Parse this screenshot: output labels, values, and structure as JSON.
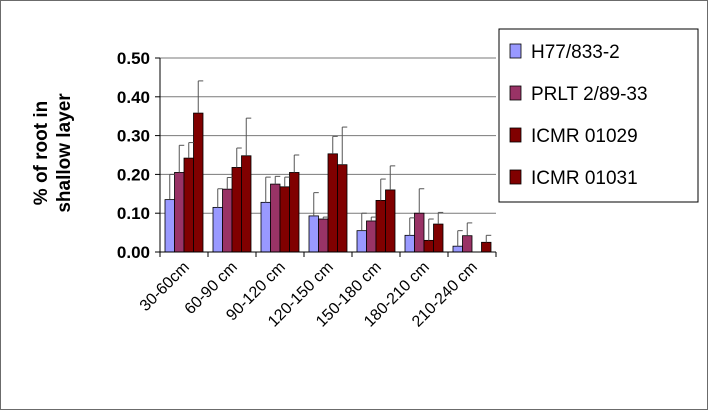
{
  "chart_data": {
    "type": "bar",
    "title": "",
    "xlabel": "",
    "ylabel": "% of root in shallow layer",
    "ylabel_lines": [
      "% of root in",
      "shallow layer"
    ],
    "ylim": [
      0,
      0.5
    ],
    "yticks": [
      "0.00",
      "0.10",
      "0.20",
      "0.30",
      "0.40",
      "0.50"
    ],
    "grid": true,
    "legend_position": "right",
    "categories": [
      "30-60cm",
      "60-90 cm",
      "90-120 cm",
      "120-150 cm",
      "150-180 cm",
      "180-210 cm",
      "210-240 cm"
    ],
    "series": [
      {
        "name": "H77/833-2",
        "color": "#9999ff",
        "values": [
          0.135,
          0.115,
          0.128,
          0.093,
          0.055,
          0.043,
          0.015
        ],
        "errors": [
          0.065,
          0.048,
          0.065,
          0.06,
          0.045,
          0.045,
          0.04
        ]
      },
      {
        "name": "PRLT 2/89-33",
        "color": "#993366",
        "values": [
          0.205,
          0.162,
          0.175,
          0.085,
          0.08,
          0.1,
          0.042
        ],
        "errors": [
          0.07,
          0.03,
          0.02,
          0.005,
          0.01,
          0.063,
          0.033
        ]
      },
      {
        "name": "ICMR 01029",
        "color": "#800000",
        "values": [
          0.242,
          0.218,
          0.168,
          0.253,
          0.133,
          0.03,
          0.0
        ],
        "errors": [
          0.04,
          0.05,
          0.025,
          0.045,
          0.055,
          0.055,
          0.0
        ]
      },
      {
        "name": "ICMR 01031",
        "color": "#800000",
        "values": [
          0.358,
          0.248,
          0.205,
          0.225,
          0.16,
          0.072,
          0.025
        ],
        "errors": [
          0.083,
          0.097,
          0.045,
          0.097,
          0.062,
          0.03,
          0.018
        ]
      }
    ]
  }
}
